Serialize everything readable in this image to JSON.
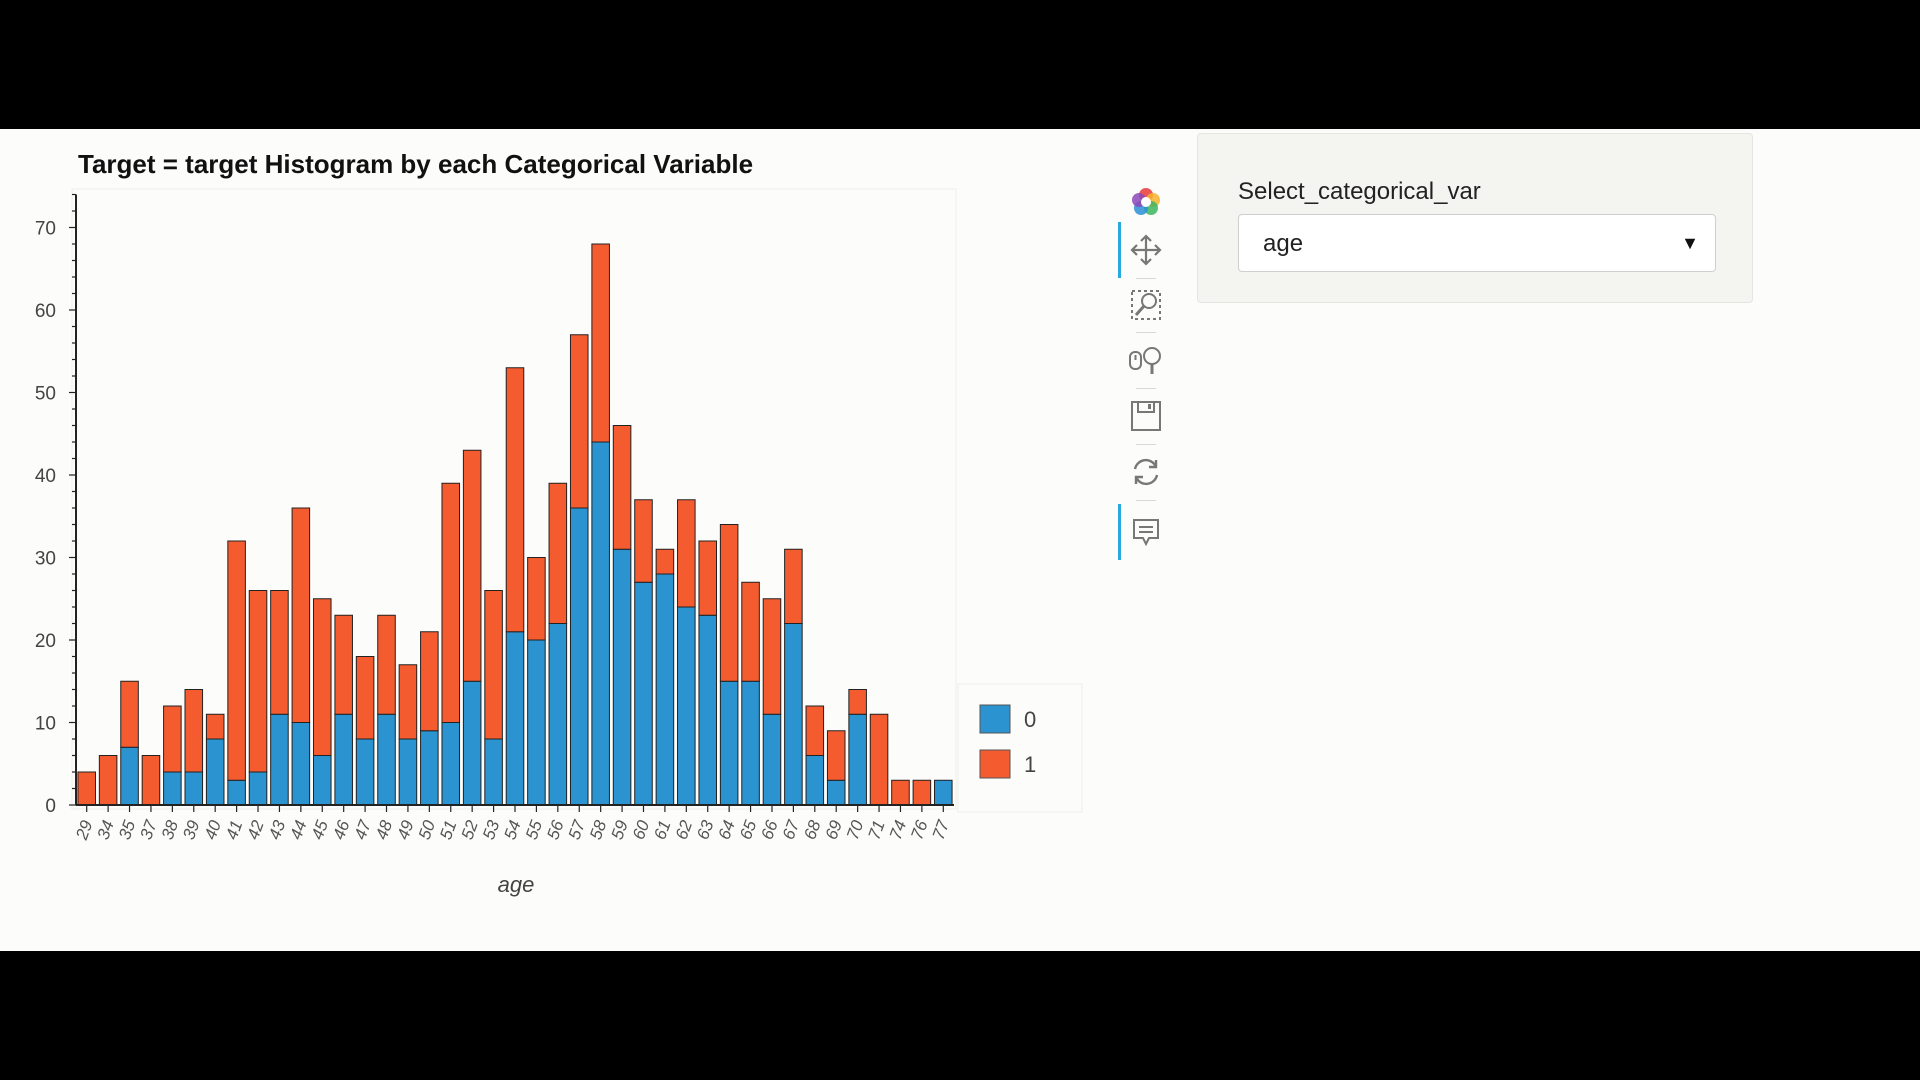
{
  "toolbar": {
    "tools": [
      {
        "name": "bokeh-logo",
        "icon": "bokeh-logo-icon"
      },
      {
        "name": "pan",
        "icon": "pan-move-icon",
        "active": true
      },
      {
        "name": "box-zoom",
        "icon": "box-zoom-icon"
      },
      {
        "name": "wheel-zoom",
        "icon": "wheel-zoom-icon"
      },
      {
        "name": "save",
        "icon": "save-icon"
      },
      {
        "name": "reset",
        "icon": "reset-icon"
      },
      {
        "name": "hover",
        "icon": "hover-tooltip-icon",
        "active": true
      }
    ]
  },
  "widget": {
    "label": "Select_categorical_var",
    "selected": "age",
    "caret": "▼"
  },
  "colors": {
    "series_0": "#2b93d0",
    "series_1": "#f45b2f",
    "bar_outline": "#222222",
    "accent": "#26aae1"
  },
  "chart_data": {
    "type": "bar",
    "stacked": true,
    "title": "Target = target Histogram by each Categorical Variable",
    "xlabel": "age",
    "ylabel": "",
    "ylim": [
      0,
      74
    ],
    "yticks": [
      0,
      10,
      20,
      30,
      40,
      50,
      60,
      70
    ],
    "grid": false,
    "legend_position": "bottom-right, outside plot",
    "categories": [
      "29",
      "34",
      "35",
      "37",
      "38",
      "39",
      "40",
      "41",
      "42",
      "43",
      "44",
      "45",
      "46",
      "47",
      "48",
      "49",
      "50",
      "51",
      "52",
      "53",
      "54",
      "55",
      "56",
      "57",
      "58",
      "59",
      "60",
      "61",
      "62",
      "63",
      "64",
      "65",
      "66",
      "67",
      "68",
      "69",
      "70",
      "71",
      "74",
      "76",
      "77"
    ],
    "series": [
      {
        "name": "0",
        "values": [
          0,
          0,
          7,
          0,
          4,
          4,
          8,
          3,
          4,
          11,
          10,
          6,
          11,
          8,
          11,
          8,
          9,
          10,
          15,
          8,
          21,
          20,
          22,
          36,
          44,
          31,
          27,
          28,
          24,
          23,
          15,
          15,
          11,
          22,
          6,
          3,
          11,
          0,
          0,
          0,
          3
        ]
      },
      {
        "name": "1",
        "values": [
          4,
          6,
          8,
          6,
          8,
          10,
          3,
          29,
          22,
          15,
          26,
          19,
          12,
          10,
          12,
          9,
          12,
          29,
          28,
          18,
          32,
          10,
          17,
          21,
          24,
          15,
          10,
          3,
          13,
          9,
          19,
          12,
          14,
          9,
          6,
          6,
          3,
          11,
          3,
          3,
          0
        ]
      }
    ]
  }
}
